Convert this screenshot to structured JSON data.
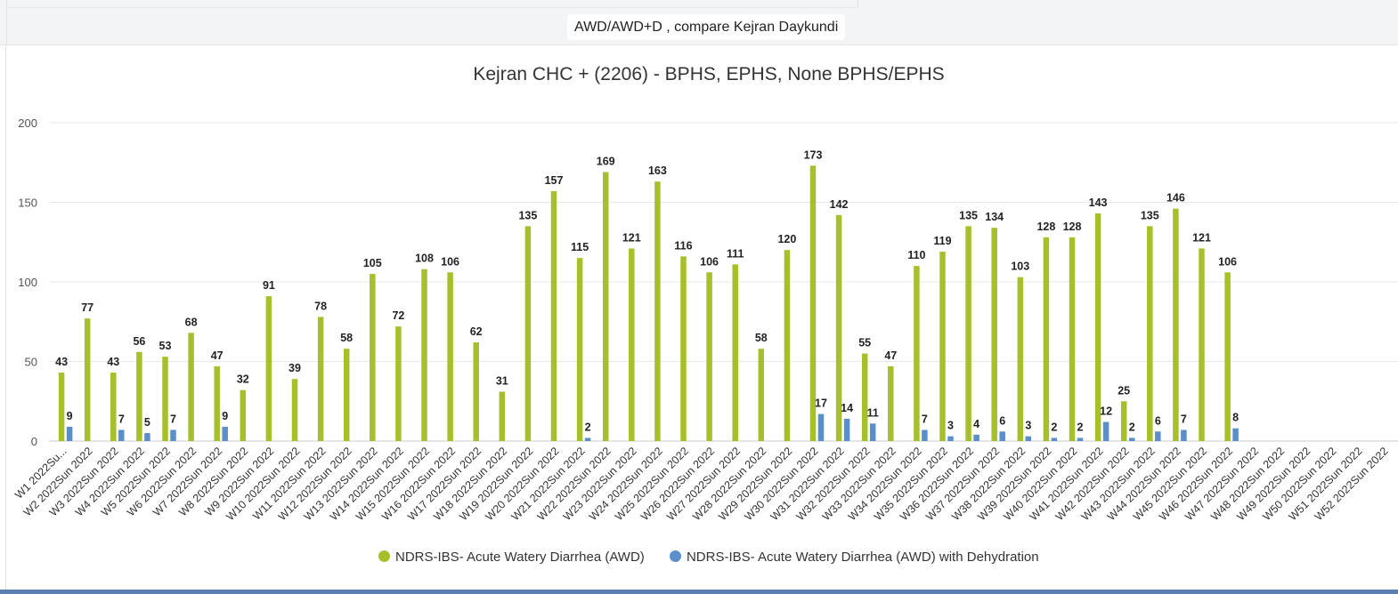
{
  "panel": {
    "title": "AWD/AWD+D , compare Kejran Daykundi"
  },
  "chart_data": {
    "type": "bar",
    "title": "Kejran CHC + (2206) - BPHS, EPHS, None BPHS/EPHS",
    "ylim": [
      0,
      200
    ],
    "yticks": [
      0,
      50,
      100,
      150,
      200
    ],
    "grid": true,
    "legend_position": "bottom",
    "categories": [
      "W1 2022Sun 2022",
      "W2 2022Sun 2022",
      "W3 2022Sun 2022",
      "W4 2022Sun 2022",
      "W5 2022Sun 2022",
      "W6 2022Sun 2022",
      "W7 2022Sun 2022",
      "W8 2022Sun 2022",
      "W9 2022Sun 2022",
      "W10 2022Sun 2022",
      "W11 2022Sun 2022",
      "W12 2022Sun 2022",
      "W13 2022Sun 2022",
      "W14 2022Sun 2022",
      "W15 2022Sun 2022",
      "W16 2022Sun 2022",
      "W17 2022Sun 2022",
      "W18 2022Sun 2022",
      "W19 2022Sun 2022",
      "W20 2022Sun 2022",
      "W21 2022Sun 2022",
      "W22 2022Sun 2022",
      "W23 2022Sun 2022",
      "W24 2022Sun 2022",
      "W25 2022Sun 2022",
      "W26 2022Sun 2022",
      "W27 2022Sun 2022",
      "W28 2022Sun 2022",
      "W29 2022Sun 2022",
      "W30 2022Sun 2022",
      "W31 2022Sun 2022",
      "W32 2022Sun 2022",
      "W33 2022Sun 2022",
      "W34 2022Sun 2022",
      "W35 2022Sun 2022",
      "W36 2022Sun 2022",
      "W37 2022Sun 2022",
      "W38 2022Sun 2022",
      "W39 2022Sun 2022",
      "W40 2022Sun 2022",
      "W41 2022Sun 2022",
      "W42 2022Sun 2022",
      "W43 2022Sun 2022",
      "W44 2022Sun 2022",
      "W45 2022Sun 2022",
      "W46 2022Sun 2022",
      "W47 2022Sun 2022",
      "W48 2022Sun 2022",
      "W49 2022Sun 2022",
      "W50 2022Sun 2022",
      "W51 2022Sun 2022",
      "W52 2022Sun 2022"
    ],
    "category_labels_shown": [
      "W1 2022Su...",
      "W2 2022Sun 2022",
      "W3 2022Sun 2022",
      "W4 2022Sun 2022",
      "W5 2022Sun 2022",
      "W6 2022Sun 2022",
      "W7 2022Sun 2022",
      "W8 2022Sun 2022",
      "W9 2022Sun 2022",
      "W10 2022Sun 2022",
      "W11 2022Sun 2022",
      "W12 2022Sun 2022",
      "W13 2022Sun 2022",
      "W14 2022Sun 2022",
      "W15 2022Sun 2022",
      "W16 2022Sun 2022",
      "W17 2022Sun 2022",
      "W18 2022Sun 2022",
      "W19 2022Sun 2022",
      "W20 2022Sun 2022",
      "W21 2022Sun 2022",
      "W22 2022Sun 2022",
      "W23 2022Sun 2022",
      "W24 2022Sun 2022",
      "W25 2022Sun 2022",
      "W26 2022Sun 2022",
      "W27 2022Sun 2022",
      "W28 2022Sun 2022",
      "W29 2022Sun 2022",
      "W30 2022Sun 2022",
      "W31 2022Sun 2022",
      "W32 2022Sun 2022",
      "W33 2022Sun 2022",
      "W34 2022Sun 2022",
      "W35 2022Sun 2022",
      "W36 2022Sun 2022",
      "W37 2022Sun 2022",
      "W38 2022Sun 2022",
      "W39 2022Sun 2022",
      "W40 2022Sun 2022",
      "W41 2022Sun 2022",
      "W42 2022Sun 2022",
      "W43 2022Sun 2022",
      "W44 2022Sun 2022",
      "W45 2022Sun 2022",
      "W46 2022Sun 2022",
      "W47 2022Sun 2022",
      "W48 2022Sun 2022",
      "W49 2022Sun 2022",
      "W50 2022Sun 2022",
      "W51 2022Sun 2022",
      "W52 2022Sun 2022"
    ],
    "series": [
      {
        "name": "NDRS-IBS- Acute Watery Diarrhea (AWD)",
        "color": "#a5c02b",
        "values": [
          43,
          77,
          43,
          56,
          53,
          68,
          47,
          32,
          91,
          39,
          78,
          58,
          105,
          72,
          108,
          106,
          62,
          31,
          135,
          157,
          115,
          169,
          121,
          163,
          116,
          106,
          111,
          58,
          120,
          173,
          142,
          55,
          47,
          110,
          119,
          135,
          134,
          103,
          128,
          128,
          143,
          25,
          135,
          146,
          121,
          106,
          null,
          null,
          null,
          null,
          null,
          null
        ]
      },
      {
        "name": "NDRS-IBS- Acute Watery Diarrhea (AWD) with Dehydration",
        "color": "#5b8fc9",
        "values": [
          9,
          null,
          7,
          5,
          7,
          null,
          9,
          null,
          null,
          null,
          null,
          null,
          null,
          null,
          null,
          null,
          null,
          null,
          null,
          null,
          2,
          null,
          null,
          null,
          null,
          null,
          null,
          null,
          null,
          17,
          14,
          11,
          null,
          7,
          3,
          4,
          6,
          3,
          2,
          2,
          12,
          2,
          6,
          7,
          null,
          8,
          null,
          null,
          null,
          null,
          null,
          null
        ]
      }
    ]
  }
}
